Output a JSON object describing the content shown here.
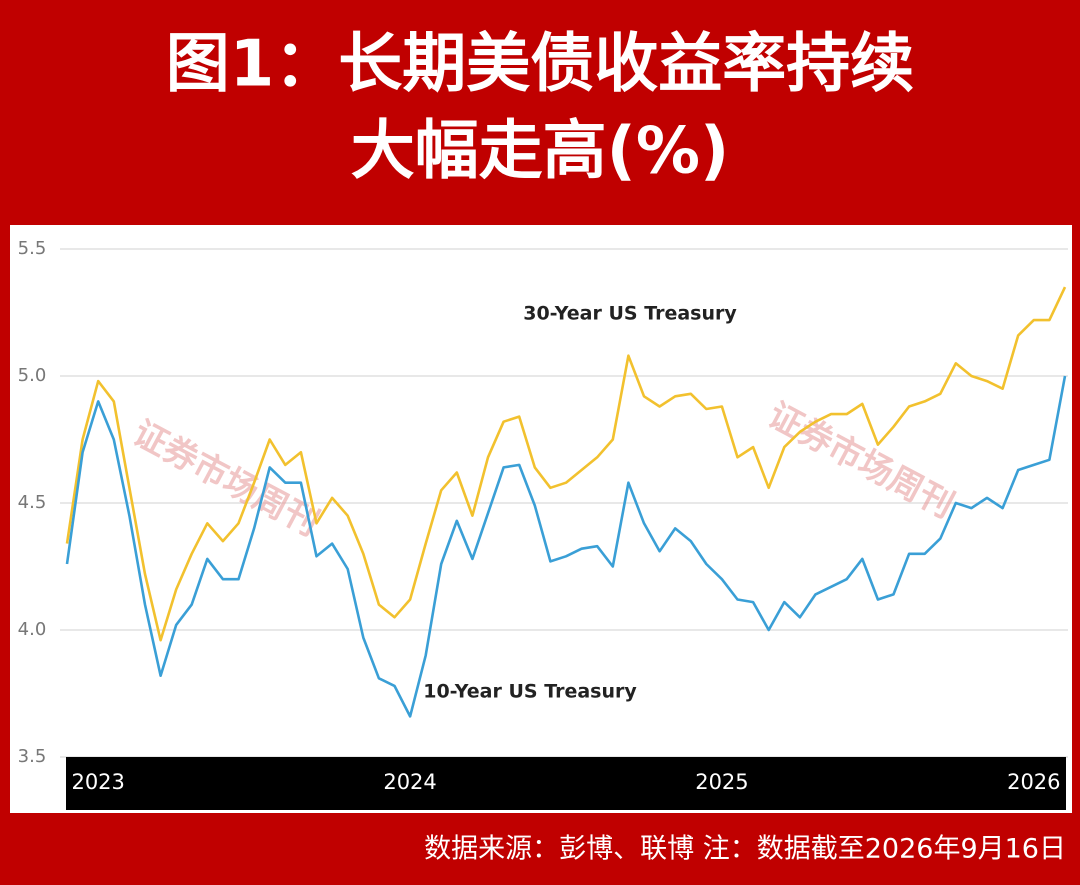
{
  "chart_data": {
    "type": "line",
    "title": [
      "图1：长期美债收益率持续",
      "大幅走高(%)"
    ],
    "note": "数据来源：彭博、联博 注：数据截至2026年9月16日",
    "watermarks": [
      "证券市场周刊",
      "证券市场周刊"
    ],
    "x": [
      2022.9,
      2022.95,
      2023.0,
      2023.05,
      2023.1,
      2023.15,
      2023.2,
      2023.25,
      2023.3,
      2023.35,
      2023.4,
      2023.45,
      2023.5,
      2023.55,
      2023.6,
      2023.65,
      2023.7,
      2023.75,
      2023.8,
      2023.85,
      2023.9,
      2023.95,
      2024.0,
      2024.05,
      2024.1,
      2024.15,
      2024.2,
      2024.25,
      2024.3,
      2024.35,
      2024.4,
      2024.45,
      2024.5,
      2024.55,
      2024.6,
      2024.65,
      2024.7,
      2024.75,
      2024.8,
      2024.85,
      2024.9,
      2024.95,
      2025.0,
      2025.05,
      2025.1,
      2025.15,
      2025.2,
      2025.25,
      2025.3,
      2025.35,
      2025.4,
      2025.45,
      2025.5,
      2025.55,
      2025.6,
      2025.65,
      2025.7,
      2025.75,
      2025.8,
      2025.85,
      2025.9,
      2025.95,
      2026.0,
      2026.05,
      2026.1
    ],
    "series": [
      {
        "name": "30-Year US Treasury",
        "color": "#f2c12e",
        "values": [
          4.34,
          4.75,
          4.98,
          4.9,
          4.56,
          4.22,
          3.96,
          4.16,
          4.3,
          4.42,
          4.35,
          4.42,
          4.58,
          4.75,
          4.65,
          4.7,
          4.42,
          4.52,
          4.45,
          4.3,
          4.1,
          4.05,
          4.12,
          4.34,
          4.55,
          4.62,
          4.45,
          4.68,
          4.82,
          4.84,
          4.64,
          4.56,
          4.58,
          4.63,
          4.68,
          4.75,
          5.08,
          4.92,
          4.88,
          4.92,
          4.93,
          4.87,
          4.88,
          4.68,
          4.72,
          4.56,
          4.72,
          4.78,
          4.82,
          4.85,
          4.85,
          4.89,
          4.73,
          4.8,
          4.88,
          4.9,
          4.93,
          5.05,
          5.0,
          4.98,
          4.95,
          5.16,
          5.22,
          5.22,
          5.35
        ]
      },
      {
        "name": "10-Year US Treasury",
        "color": "#3a9fd6",
        "values": [
          4.26,
          4.7,
          4.9,
          4.75,
          4.45,
          4.1,
          3.82,
          4.02,
          4.1,
          4.28,
          4.2,
          4.2,
          4.4,
          4.64,
          4.58,
          4.58,
          4.29,
          4.34,
          4.24,
          3.97,
          3.81,
          3.78,
          3.66,
          3.9,
          4.26,
          4.43,
          4.28,
          4.46,
          4.64,
          4.65,
          4.49,
          4.27,
          4.29,
          4.32,
          4.33,
          4.25,
          4.58,
          4.42,
          4.31,
          4.4,
          4.35,
          4.26,
          4.2,
          4.12,
          4.11,
          4.0,
          4.11,
          4.05,
          4.14,
          4.17,
          4.2,
          4.28,
          4.12,
          4.14,
          4.3,
          4.3,
          4.36,
          4.5,
          4.48,
          4.52,
          4.48,
          4.63,
          4.65,
          4.67,
          5.0
        ]
      }
    ],
    "xlim": [
      2022.9,
      2026.1
    ],
    "xticks": [
      2023,
      2024,
      2025,
      2026
    ],
    "ylim": [
      3.5,
      5.5
    ],
    "yticks": [
      3.5,
      {
        "value": 4,
        "label": "4.0"
      },
      4.5,
      {
        "value": 5,
        "label": "5.0"
      },
      5.5
    ],
    "grid": true
  }
}
